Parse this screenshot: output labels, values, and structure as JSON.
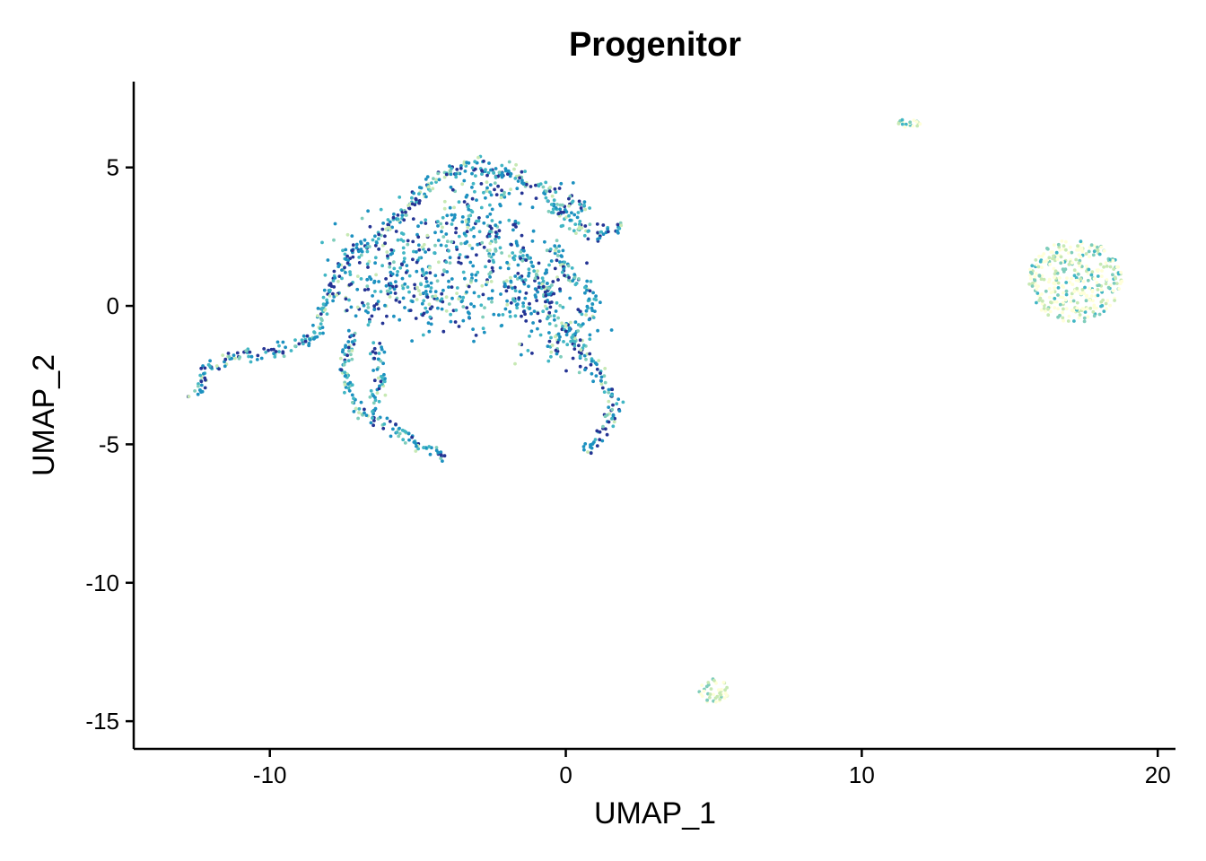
{
  "chart_data": {
    "type": "scatter",
    "title": "Progenitor",
    "xlabel": "UMAP_1",
    "ylabel": "UMAP_2",
    "xlim": [
      -14.6,
      20.6
    ],
    "ylim": [
      -16.0,
      8.1
    ],
    "xticks": [
      -10,
      0,
      10,
      20
    ],
    "yticks": [
      -15,
      -10,
      -5,
      0,
      5
    ],
    "xtick_labels": [
      "-10",
      "0",
      "10",
      "20"
    ],
    "ytick_labels": [
      "-15",
      "-10",
      "-5",
      "0",
      "5"
    ],
    "grid": false,
    "legend": "none",
    "colors": {
      "low": "#ffffd9",
      "mid_low": "#c7e9b4",
      "mid": "#7fcdbb",
      "mid_high": "#41b6c4",
      "high": "#1d91c0",
      "max": "#253494"
    },
    "clusters": [
      {
        "name": "main-arc",
        "x_range": [
          -12.5,
          2.0
        ],
        "y_range": [
          -5.6,
          5.2
        ],
        "expression_level": "high"
      },
      {
        "name": "right-cluster",
        "center": [
          17.2,
          0.9
        ],
        "radius": [
          1.6,
          1.5
        ],
        "expression_level": "low"
      },
      {
        "name": "top-right-cluster",
        "center": [
          11.6,
          6.6
        ],
        "radius": [
          0.4,
          0.15
        ],
        "expression_level": "low"
      },
      {
        "name": "bottom-cluster",
        "center": [
          5.0,
          -13.9
        ],
        "radius": [
          0.5,
          0.45
        ],
        "expression_level": "low"
      }
    ]
  }
}
